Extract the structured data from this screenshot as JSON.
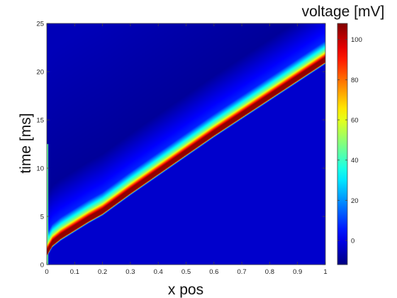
{
  "chart_data": {
    "type": "heatmap",
    "title": "",
    "xlabel": "x pos",
    "ylabel": "time [ms]",
    "colorbar_label": "voltage [mV]",
    "xlim": [
      0,
      1
    ],
    "ylim": [
      0,
      25
    ],
    "clim": [
      -12,
      108
    ],
    "colormap": "jet",
    "x_ticks": [
      "0",
      "0.1",
      "0.2",
      "0.3",
      "0.4",
      "0.5",
      "0.6",
      "0.7",
      "0.8",
      "0.9",
      "1"
    ],
    "y_ticks": [
      "0",
      "5",
      "10",
      "15",
      "20",
      "25"
    ],
    "colorbar_ticks": [
      "0",
      "20",
      "40",
      "60",
      "80",
      "100"
    ],
    "resting_voltage_mv": -3,
    "peak_voltage_mv": 106,
    "stimulus_window_ms": [
      0,
      12.5
    ],
    "wavefront": {
      "x": [
        0,
        0.02,
        0.05,
        0.1,
        0.15,
        0.2,
        0.3,
        0.4,
        0.5,
        0.6,
        0.7,
        0.8,
        0.9,
        1.0
      ],
      "t_ms": [
        1.0,
        2.0,
        2.7,
        3.6,
        4.5,
        5.3,
        7.4,
        9.4,
        11.4,
        13.4,
        15.3,
        17.2,
        19.1,
        21.0
      ]
    }
  }
}
